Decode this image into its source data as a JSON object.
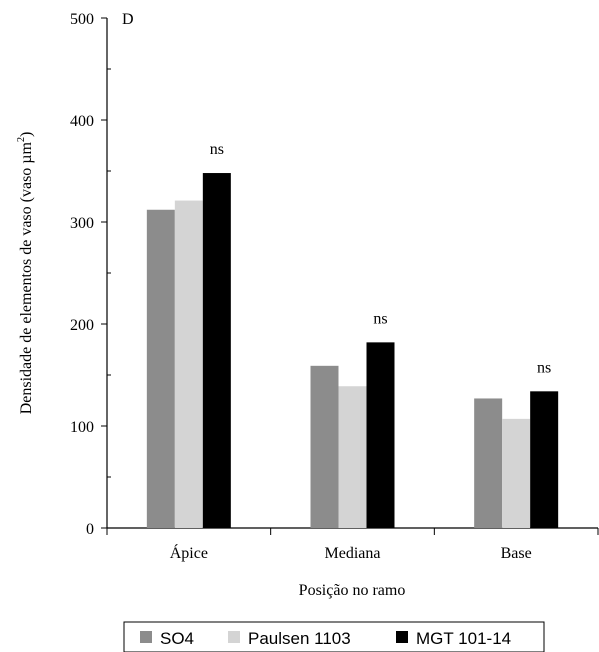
{
  "chart_data": {
    "type": "bar",
    "panel_label": "D",
    "categories": [
      "Ápice",
      "Mediana",
      "Base"
    ],
    "series": [
      {
        "name": "SO4",
        "values": [
          312,
          159,
          127
        ],
        "color": "#8c8c8c"
      },
      {
        "name": "Paulsen 1103",
        "values": [
          321,
          139,
          107
        ],
        "color": "#d4d4d4"
      },
      {
        "name": "MGT 101-14",
        "values": [
          348,
          182,
          134
        ],
        "color": "#000000"
      }
    ],
    "annotations": [
      "ns",
      "ns",
      "ns"
    ],
    "xlabel": "Posição no ramo",
    "ylabel": "Densidade de elementos de vaso (vaso µm",
    "ylabel_sup": "2",
    "ylabel_close": ")",
    "ylim": [
      0,
      500
    ],
    "yticks": [
      0,
      100,
      200,
      300,
      400,
      500
    ],
    "grid": false,
    "legend_position": "bottom"
  }
}
